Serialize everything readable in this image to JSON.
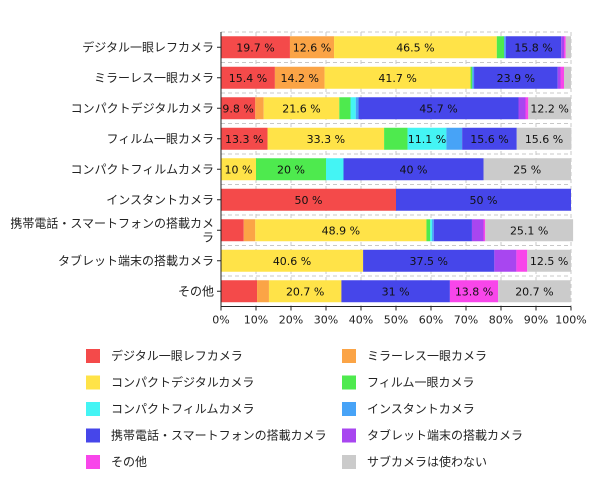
{
  "chart_data": {
    "type": "bar",
    "orientation": "horizontal",
    "stacked": "percent",
    "categories": [
      "デジタル一眼レフカメラ",
      "ミラーレス一眼カメラ",
      "コンパクトデジタルカメラ",
      "フィルム一眼カメラ",
      "コンパクトフィルムカメラ",
      "インスタントカメラ",
      "携帯電話・スマートフォンの搭載カメラ",
      "タブレット端末の搭載カメラ",
      "その他"
    ],
    "series": [
      {
        "name": "デジタル一眼レフカメラ",
        "color": "#f44a4a",
        "values": [
          19.7,
          15.4,
          9.8,
          13.3,
          0,
          50,
          6.5,
          0,
          10.3
        ]
      },
      {
        "name": "ミラーレス一眼カメラ",
        "color": "#fba446",
        "values": [
          12.6,
          14.2,
          2.4,
          0,
          0,
          0,
          3.3,
          0,
          3.4
        ]
      },
      {
        "name": "コンパクトデジタルカメラ",
        "color": "#ffe348",
        "values": [
          46.5,
          41.7,
          21.6,
          33.3,
          10,
          0,
          48.9,
          40.6,
          20.7
        ]
      },
      {
        "name": "フィルム一眼カメラ",
        "color": "#4eea4e",
        "values": [
          2.1,
          0.5,
          3.2,
          6.7,
          20,
          0,
          1.1,
          0,
          0
        ]
      },
      {
        "name": "コンパクトフィルムカメラ",
        "color": "#44f4f4",
        "values": [
          0,
          0,
          1.5,
          11.1,
          5,
          0,
          0.5,
          0,
          0
        ]
      },
      {
        "name": "インスタントカメラ",
        "color": "#47a3f7",
        "values": [
          0.5,
          0.5,
          0.8,
          4.5,
          0,
          0,
          0.5,
          0,
          0
        ]
      },
      {
        "name": "携帯電話・スマートフォンの搭載カメラ",
        "color": "#4646ea",
        "values": [
          15.8,
          23.9,
          45.7,
          15.6,
          40,
          50,
          10.9,
          37.5,
          31
        ]
      },
      {
        "name": "タブレット端末の搭載カメラ",
        "color": "#a846f0",
        "values": [
          0.8,
          0.8,
          2.0,
          0,
          0,
          0,
          3.3,
          6.3,
          0
        ]
      },
      {
        "name": "その他",
        "color": "#f846ea",
        "values": [
          0.5,
          1.0,
          0.8,
          0,
          0,
          0,
          0.5,
          3.1,
          13.8
        ]
      },
      {
        "name": "サブカメラは使わない",
        "color": "#cbcbcb",
        "values": [
          1.5,
          2.0,
          12.2,
          15.6,
          25,
          0,
          25.1,
          12.5,
          20.7
        ]
      }
    ],
    "data_labels": [
      [
        "19.7 %",
        "12.6 %",
        "46.5 %",
        "",
        "",
        "",
        "15.8 %",
        "",
        "",
        ""
      ],
      [
        "15.4 %",
        "14.2 %",
        "41.7 %",
        "",
        "",
        "",
        "23.9 %",
        "",
        "",
        ""
      ],
      [
        "9.8 %",
        "",
        "21.6 %",
        "",
        "",
        "",
        "45.7 %",
        "",
        "",
        "12.2 %"
      ],
      [
        "13.3 %",
        "",
        "33.3 %",
        "",
        "11.1 %",
        "",
        "15.6 %",
        "",
        "",
        "15.6 %"
      ],
      [
        "",
        "",
        "10 %",
        "20 %",
        "",
        "",
        "40 %",
        "",
        "",
        "25 %"
      ],
      [
        "50 %",
        "",
        "",
        "",
        "",
        "",
        "50 %",
        "",
        "",
        ""
      ],
      [
        "",
        "",
        "48.9 %",
        "",
        "",
        "",
        "",
        "",
        "",
        "25.1 %"
      ],
      [
        "",
        "",
        "40.6 %",
        "",
        "",
        "",
        "37.5 %",
        "",
        "",
        "12.5 %"
      ],
      [
        "",
        "",
        "20.7 %",
        "",
        "",
        "",
        "31 %",
        "",
        "13.8 %",
        "20.7 %"
      ]
    ],
    "x_ticks": [
      "0%",
      "10%",
      "20%",
      "30%",
      "40%",
      "50%",
      "60%",
      "70%",
      "80%",
      "90%",
      "100%"
    ],
    "xlim": [
      0,
      100
    ],
    "grid": true,
    "legend_placement": "bottom",
    "title": "",
    "xlabel": "",
    "ylabel": ""
  }
}
